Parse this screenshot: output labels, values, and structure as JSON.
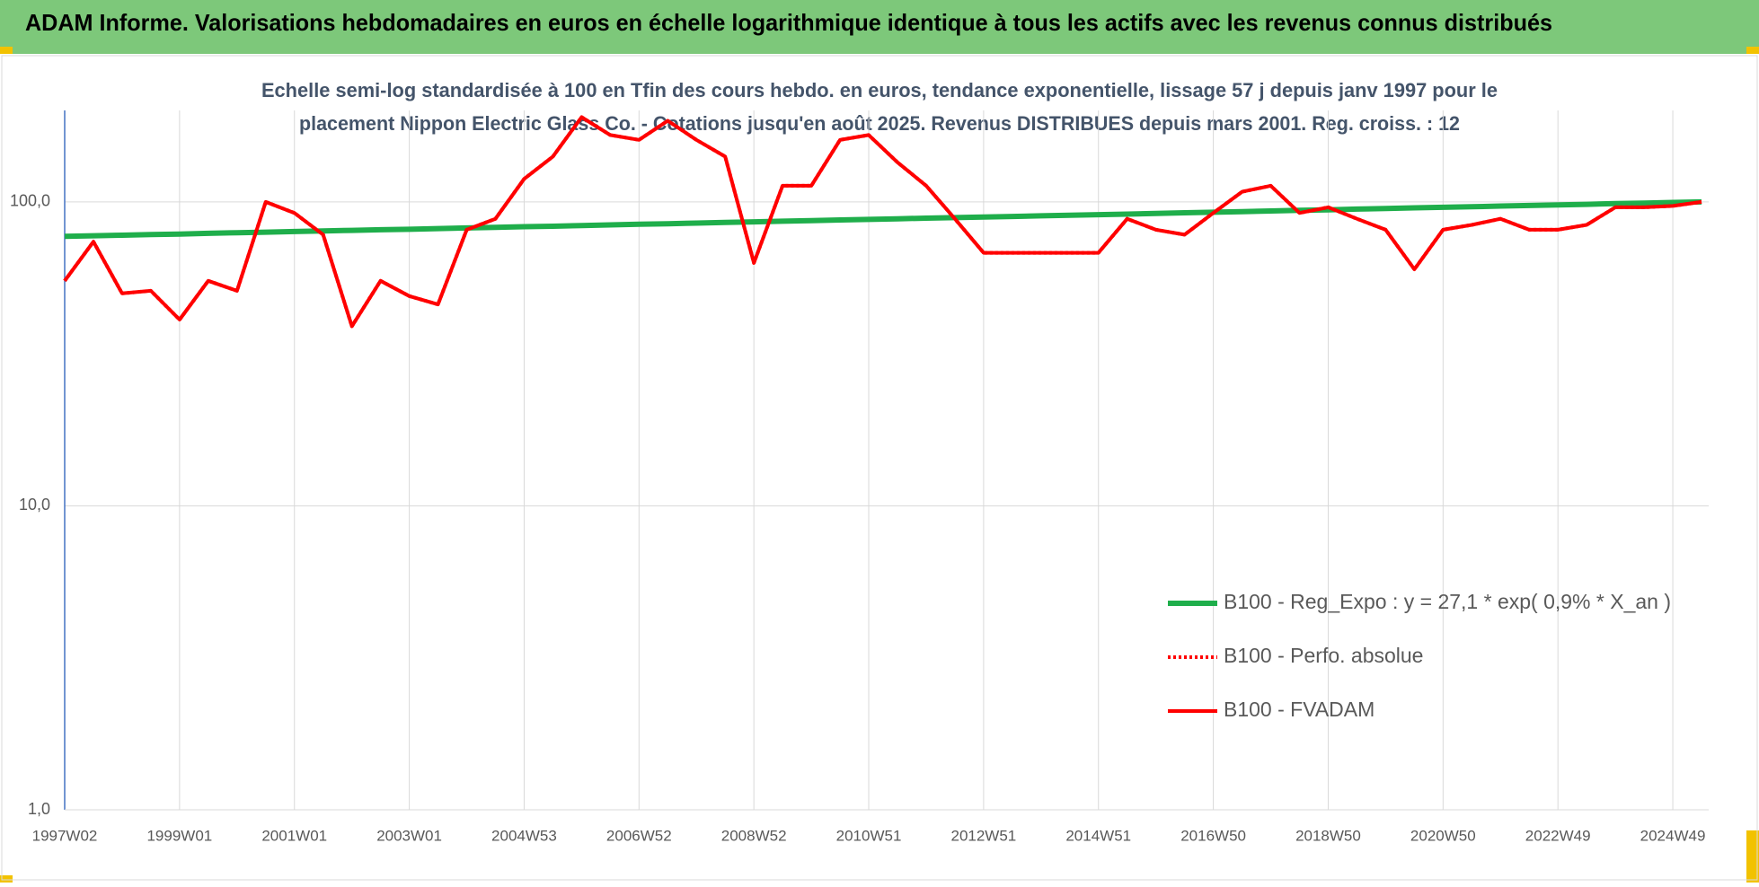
{
  "header": {
    "title": "ADAM Informe. Valorisations hebdomadaires en euros en échelle logarithmique identique à tous les actifs avec les revenus connus distribués"
  },
  "chart_data": {
    "type": "line",
    "title": [
      "Echelle semi-log standardisée à 100 en Tfin des cours hebdo. en euros, tendance exponentielle, lissage 57 j depuis janv 1997 pour le",
      "placement Nippon Electric Glass Co. - Cotations jusqu'en août 2025. Revenus DISTRIBUES depuis mars 2001. Reg. croiss. : 12"
    ],
    "categories": [
      "1997W02",
      null,
      null,
      null,
      "1999W01",
      null,
      null,
      null,
      "2001W01",
      null,
      null,
      null,
      "2003W01",
      null,
      null,
      null,
      "2004W53",
      null,
      null,
      null,
      "2006W52",
      null,
      null,
      null,
      "2008W52",
      null,
      null,
      null,
      "2010W51",
      null,
      null,
      null,
      "2012W51",
      null,
      null,
      null,
      "2014W51",
      null,
      null,
      null,
      "2016W50",
      null,
      null,
      null,
      "2018W50",
      null,
      null,
      null,
      "2020W50",
      null,
      null,
      null,
      "2022W49",
      null,
      null,
      null,
      "2024W49",
      null
    ],
    "series": [
      {
        "name": "B100 - Reg_Expo : y = 27,1 * exp( 0,9% *  X_an )",
        "color": "#1fae4b",
        "style": "solid",
        "values": [
          77.0,
          77.4,
          77.7,
          78.1,
          78.4,
          78.8,
          79.2,
          79.5,
          79.9,
          80.3,
          80.6,
          81.0,
          81.3,
          81.7,
          82.1,
          82.5,
          82.9,
          83.2,
          83.6,
          84.0,
          84.4,
          84.8,
          85.2,
          85.6,
          86.0,
          86.4,
          86.8,
          87.2,
          87.6,
          88.0,
          88.4,
          88.8,
          89.2,
          89.6,
          90.0,
          90.4,
          90.8,
          91.2,
          91.7,
          92.1,
          92.5,
          92.9,
          93.4,
          93.8,
          94.2,
          94.7,
          95.1,
          95.6,
          96.0,
          96.4,
          96.9,
          97.3,
          97.8,
          98.2,
          98.7,
          99.1,
          99.6,
          100.0
        ]
      },
      {
        "name": "B100 - Perfo. absolue",
        "color": "#ff0000",
        "style": "dotted",
        "values": [
          55,
          74,
          50,
          51,
          41,
          55,
          51,
          100,
          92,
          78,
          39,
          55,
          49,
          46,
          81,
          88,
          119,
          141,
          190,
          166,
          160,
          185,
          160,
          141,
          63,
          113,
          113,
          160,
          166,
          135,
          113,
          88,
          68,
          68,
          68,
          68,
          68,
          88,
          81,
          78,
          92,
          108,
          113,
          92,
          96,
          88,
          81,
          60,
          81,
          84,
          88,
          81,
          81,
          84,
          96,
          96,
          97,
          100
        ]
      },
      {
        "name": "B100 - FVADAM",
        "color": "#ff0000",
        "style": "solid",
        "values": [
          55,
          74,
          50,
          51,
          41,
          55,
          51,
          100,
          92,
          78,
          39,
          55,
          49,
          46,
          81,
          88,
          119,
          141,
          190,
          166,
          160,
          185,
          160,
          141,
          63,
          113,
          113,
          160,
          166,
          135,
          113,
          88,
          68,
          68,
          68,
          68,
          68,
          88,
          81,
          78,
          92,
          108,
          113,
          92,
          96,
          88,
          81,
          60,
          81,
          84,
          88,
          81,
          81,
          84,
          96,
          96,
          97,
          100
        ]
      }
    ],
    "ylim": [
      1,
      200
    ],
    "log_scale": true,
    "yticks": [
      {
        "value": 1,
        "label": "1,0"
      },
      {
        "value": 10,
        "label": "10,0"
      },
      {
        "value": 100,
        "label": "100,0"
      }
    ],
    "grid": true,
    "legend": "right"
  }
}
